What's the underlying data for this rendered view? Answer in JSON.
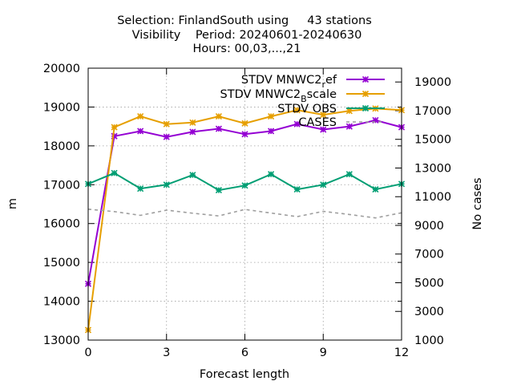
{
  "chart_data": {
    "type": "line",
    "title_lines": [
      "Selection: FinlandSouth using     43 stations",
      "Visibility    Period: 20240601-20240630",
      "Hours: 00,03,...,21"
    ],
    "xlabel": "Forecast length",
    "ylabel": "m",
    "y2label": "No cases",
    "xlim": [
      0,
      12
    ],
    "ylim": [
      13000,
      20000
    ],
    "y2lim": [
      1000,
      19963
    ],
    "xticks": [
      "0",
      "3",
      "6",
      "9",
      "12"
    ],
    "yticks": [
      "13000",
      "14000",
      "15000",
      "16000",
      "17000",
      "18000",
      "19000",
      "20000"
    ],
    "y2ticks": [
      "1000",
      "3000",
      "5000",
      "7000",
      "9000",
      "11000",
      "13000",
      "15000",
      "17000",
      "19000"
    ],
    "grid": true,
    "legend_position": "top-right",
    "x": [
      0,
      1,
      2,
      3,
      4,
      5,
      6,
      7,
      8,
      9,
      10,
      11,
      12
    ],
    "series": [
      {
        "name": "STDV MNWC2_ref",
        "legend_main": "STDV MNWC2",
        "legend_sub": "r",
        "legend_tail": "ef",
        "color": "#9400d3",
        "axis": "left",
        "marker": "star",
        "values": [
          14450,
          18250,
          18380,
          18230,
          18360,
          18440,
          18300,
          18380,
          18560,
          18420,
          18500,
          18660,
          18480
        ]
      },
      {
        "name": "STDV MNWC2_Bscale",
        "legend_main": "STDV MNWC2",
        "legend_sub": "B",
        "legend_tail": "scale",
        "color": "#e69f00",
        "axis": "left",
        "marker": "star",
        "values": [
          13260,
          18480,
          18760,
          18560,
          18600,
          18760,
          18580,
          18760,
          18920,
          18800,
          18900,
          18960,
          18920
        ]
      },
      {
        "name": "STDV OBS",
        "legend_main": "STDV OBS",
        "legend_sub": "",
        "legend_tail": "",
        "color": "#009e73",
        "axis": "left",
        "marker": "star",
        "values": [
          17020,
          17300,
          16900,
          17000,
          17250,
          16860,
          16980,
          17270,
          16880,
          17000,
          17270,
          16880,
          17020
        ]
      },
      {
        "name": "CASES",
        "legend_main": "CASES",
        "legend_sub": "",
        "legend_tail": "",
        "color": "#9e9e9e",
        "axis": "right",
        "dashed": true,
        "values": [
          10130,
          9960,
          9700,
          10060,
          9850,
          9660,
          10110,
          9860,
          9610,
          9980,
          9760,
          9520,
          9880
        ]
      }
    ]
  }
}
